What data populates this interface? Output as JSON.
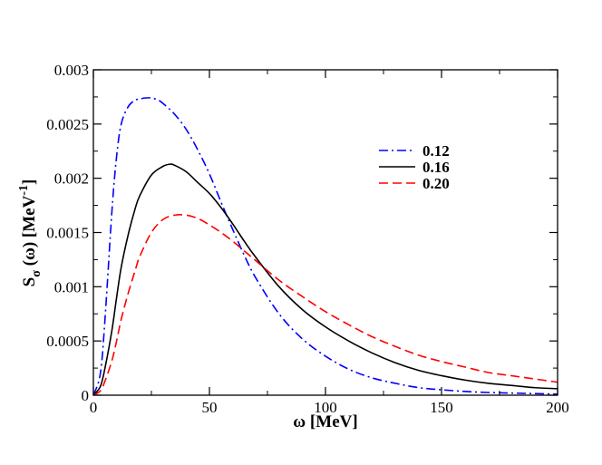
{
  "chart_data": {
    "type": "line",
    "xlabel": "ω [MeV]",
    "ylabel": {
      "main": "S",
      "sub": "σ",
      "mid": " (ω) [MeV",
      "sup": "-1",
      "end": "]"
    },
    "xlim": [
      0,
      200
    ],
    "ylim": [
      0,
      0.003
    ],
    "xticks": [
      0,
      50,
      100,
      150,
      200
    ],
    "yticks": [
      0,
      0.0005,
      0.001,
      0.0015,
      0.002,
      0.0025,
      0.003
    ],
    "xtick_labels": [
      "0",
      "50",
      "100",
      "150",
      "200"
    ],
    "ytick_labels": [
      "0",
      "0.0005",
      "0.001",
      "0.0015",
      "0.002",
      "0.0025",
      "0.003"
    ],
    "grid": false,
    "legend_position": "upper-right",
    "series": [
      {
        "name": "0.12",
        "color": "#0000ff",
        "dash": "dash-dot",
        "x": [
          0,
          3,
          5,
          8,
          10,
          12,
          15,
          18,
          20,
          22,
          25,
          28,
          30,
          35,
          40,
          45,
          50,
          55,
          60,
          65,
          70,
          80,
          90,
          100,
          110,
          120,
          130,
          140,
          150,
          160,
          170,
          180,
          190,
          200
        ],
        "y": [
          0,
          0.0002,
          0.0007,
          0.0017,
          0.0022,
          0.0025,
          0.00266,
          0.00272,
          0.00273,
          0.00274,
          0.00274,
          0.00272,
          0.00269,
          0.00259,
          0.00245,
          0.00226,
          0.00204,
          0.00178,
          0.00153,
          0.00129,
          0.00108,
          0.00075,
          0.00052,
          0.00036,
          0.00024,
          0.00016,
          0.00011,
          7e-05,
          5e-05,
          3.5e-05,
          2.5e-05,
          2e-05,
          1.5e-05,
          1e-05
        ]
      },
      {
        "name": "0.16",
        "color": "#000000",
        "dash": "solid",
        "x": [
          0,
          3,
          5,
          8,
          10,
          12,
          15,
          18,
          20,
          25,
          30,
          33,
          35,
          40,
          45,
          50,
          55,
          60,
          65,
          70,
          80,
          90,
          100,
          110,
          120,
          130,
          140,
          150,
          160,
          170,
          180,
          190,
          200
        ],
        "y": [
          0,
          8e-05,
          0.00025,
          0.0006,
          0.0009,
          0.00118,
          0.00148,
          0.00172,
          0.00184,
          0.00203,
          0.00211,
          0.00213,
          0.00212,
          0.00206,
          0.00196,
          0.00186,
          0.00173,
          0.00158,
          0.00142,
          0.00127,
          0.001,
          0.00079,
          0.00063,
          0.0005,
          0.00039,
          0.0003,
          0.00023,
          0.00018,
          0.00014,
          0.00011,
          9e-05,
          7e-05,
          6e-05
        ]
      },
      {
        "name": "0.20",
        "color": "#ff0000",
        "dash": "dashed",
        "x": [
          0,
          3,
          5,
          8,
          10,
          12,
          15,
          18,
          20,
          25,
          30,
          35,
          40,
          45,
          50,
          55,
          60,
          65,
          70,
          80,
          90,
          100,
          110,
          120,
          130,
          140,
          150,
          160,
          170,
          180,
          190,
          200
        ],
        "y": [
          0,
          4e-05,
          0.00013,
          0.00032,
          0.0005,
          0.0007,
          0.00094,
          0.00115,
          0.00128,
          0.0015,
          0.00162,
          0.00166,
          0.00166,
          0.00163,
          0.00157,
          0.0015,
          0.00142,
          0.00133,
          0.00124,
          0.00106,
          0.00091,
          0.00077,
          0.00065,
          0.00054,
          0.00045,
          0.00037,
          0.00031,
          0.00026,
          0.00021,
          0.00018,
          0.00015,
          0.00012
        ]
      }
    ]
  }
}
